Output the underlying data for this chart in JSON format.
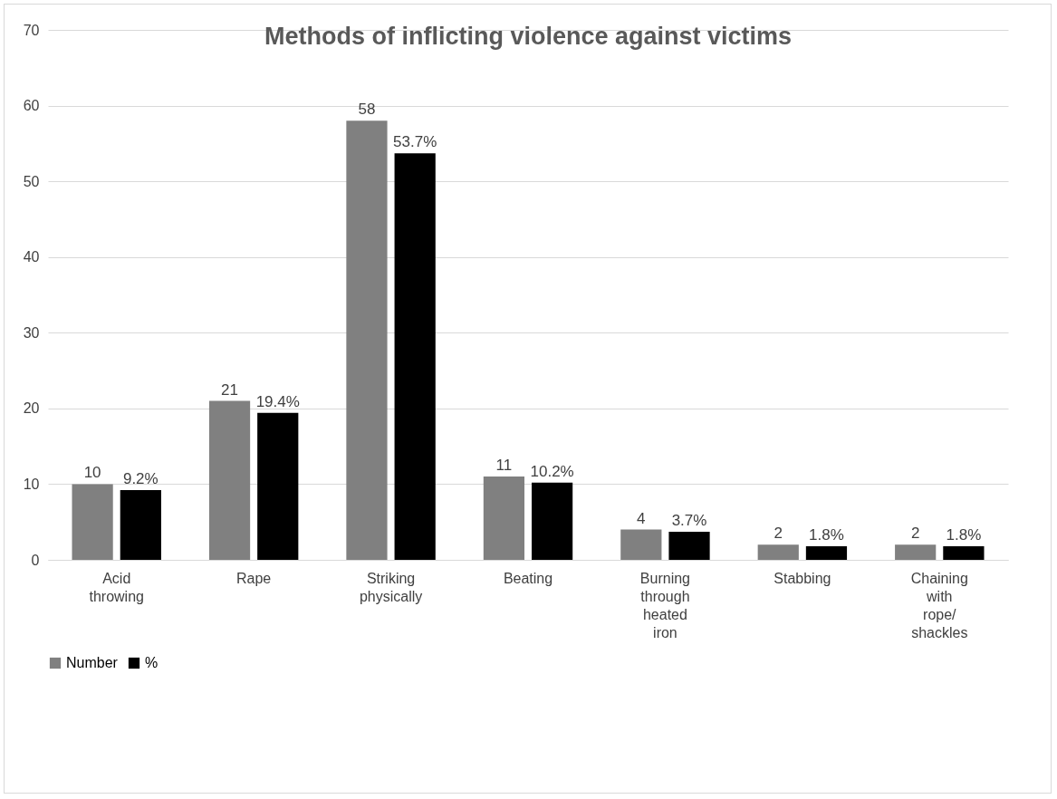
{
  "chart_data": {
    "type": "bar",
    "title": "Methods of inflicting violence against victims",
    "categories": [
      "Acid throwing",
      "Rape",
      "Striking physically",
      "Beating",
      "Burning through heated iron",
      "Stabbing",
      "Chaining with rope/ shackles"
    ],
    "series": [
      {
        "name": "Number",
        "color": "#808080",
        "values": [
          10,
          21,
          58,
          11,
          4,
          2,
          2
        ],
        "value_labels": [
          "10",
          "21",
          "58",
          "11",
          "4",
          "2",
          "2"
        ]
      },
      {
        "name": "%",
        "color": "#000000",
        "values": [
          9.2,
          19.4,
          53.7,
          10.2,
          3.7,
          1.8,
          1.8
        ],
        "value_labels": [
          "9.2%",
          "19.4%",
          "53.7%",
          "10.2%",
          "3.7%",
          "1.8%",
          "1.8%"
        ]
      }
    ],
    "ylim": [
      0,
      70
    ],
    "yticks": [
      0,
      10,
      20,
      30,
      40,
      50,
      60,
      70
    ],
    "grid": "y",
    "legend": "bottom"
  }
}
